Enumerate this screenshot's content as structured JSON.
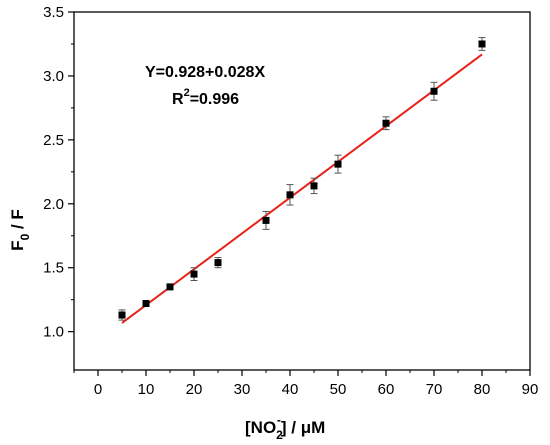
{
  "chart_data": {
    "type": "scatter",
    "xlim": [
      -5,
      90
    ],
    "ylim": [
      0.7,
      3.5
    ],
    "x_ticks": [
      0,
      10,
      20,
      30,
      40,
      50,
      60,
      70,
      80,
      90
    ],
    "y_ticks": [
      1.0,
      1.5,
      2.0,
      2.5,
      3.0,
      3.5
    ],
    "x_tick_labels": [
      "0",
      "10",
      "20",
      "30",
      "40",
      "50",
      "60",
      "70",
      "80",
      "90"
    ],
    "y_tick_labels": [
      "1.0",
      "1.5",
      "2.0",
      "2.5",
      "3.0",
      "3.5"
    ],
    "xlabel": {
      "prefix": "[NO",
      "sub": "2",
      "sup": "-",
      "suffix": "] / μM"
    },
    "ylabel": {
      "main": "F",
      "sub": "0",
      "suffix": " / F"
    },
    "series": [
      {
        "points": [
          {
            "x": 5,
            "y": 1.13,
            "err": 0.04
          },
          {
            "x": 10,
            "y": 1.22,
            "err": 0.02
          },
          {
            "x": 15,
            "y": 1.35,
            "err": 0.02
          },
          {
            "x": 20,
            "y": 1.45,
            "err": 0.05
          },
          {
            "x": 25,
            "y": 1.54,
            "err": 0.04
          },
          {
            "x": 35,
            "y": 1.87,
            "err": 0.07
          },
          {
            "x": 40,
            "y": 2.07,
            "err": 0.08
          },
          {
            "x": 45,
            "y": 2.14,
            "err": 0.06
          },
          {
            "x": 50,
            "y": 2.31,
            "err": 0.07
          },
          {
            "x": 60,
            "y": 2.63,
            "err": 0.05
          },
          {
            "x": 70,
            "y": 2.88,
            "err": 0.07
          },
          {
            "x": 80,
            "y": 3.25,
            "err": 0.05
          }
        ],
        "marker_color": "#000000"
      }
    ],
    "fit": {
      "intercept": 0.928,
      "slope": 0.028,
      "x_range": [
        5,
        80
      ],
      "color": "#e8211a"
    },
    "annotations": {
      "equation": "Y=0.928+0.028X",
      "r2_prefix": "R",
      "r2_sup": "2",
      "r2_value": "=0.996"
    },
    "grid": false
  }
}
